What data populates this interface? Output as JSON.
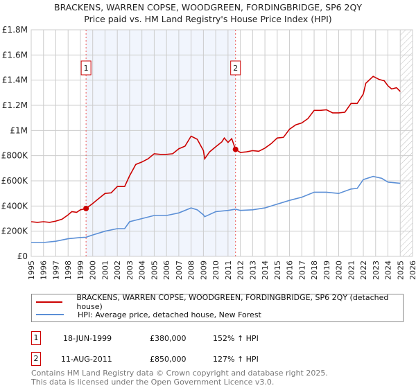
{
  "chart_data": {
    "type": "line",
    "title": "BRACKENS, WARREN COPSE, WOODGREEN, FORDINGBRIDGE, SP6 2QY",
    "subtitle": "Price paid vs. HM Land Registry's House Price Index (HPI)",
    "xlim": [
      1995,
      2026
    ],
    "ylim": [
      0,
      1800000
    ],
    "x_ticks": [
      "1995",
      "1996",
      "1997",
      "1998",
      "1999",
      "2000",
      "2001",
      "2002",
      "2003",
      "2004",
      "2005",
      "2006",
      "2007",
      "2008",
      "2009",
      "2010",
      "2011",
      "2012",
      "2013",
      "2014",
      "2015",
      "2016",
      "2017",
      "2018",
      "2019",
      "2020",
      "2021",
      "2022",
      "2023",
      "2024",
      "2025",
      "2026"
    ],
    "y_ticks": [
      {
        "v": 0,
        "label": "£0"
      },
      {
        "v": 200000,
        "label": "£200K"
      },
      {
        "v": 400000,
        "label": "£400K"
      },
      {
        "v": 600000,
        "label": "£600K"
      },
      {
        "v": 800000,
        "label": "£800K"
      },
      {
        "v": 1000000,
        "label": "£1M"
      },
      {
        "v": 1200000,
        "label": "£1.2M"
      },
      {
        "v": 1400000,
        "label": "£1.4M"
      },
      {
        "v": 1600000,
        "label": "£1.6M"
      },
      {
        "v": 1800000,
        "label": "£1.8M"
      }
    ],
    "grid": true,
    "shaded_range": [
      1999.46,
      2011.61
    ],
    "forecast_hatch_from": 2025.0,
    "series": [
      {
        "name": "BRACKENS, WARREN COPSE, WOODGREEN, FORDINGBRIDGE, SP6 2QY (detached house)",
        "color": "#cc0000",
        "x": [
          1995,
          1995.5,
          1996,
          1996.5,
          1997,
          1997.5,
          1998,
          1998.3,
          1998.7,
          1999,
          1999.46,
          2000,
          2000.5,
          2001,
          2001.5,
          2002,
          2002.6,
          2003,
          2003.5,
          2004,
          2004.5,
          2005,
          2005.5,
          2006,
          2006.5,
          2007,
          2007.5,
          2008,
          2008.5,
          2009,
          2009.1,
          2009.5,
          2010,
          2010.5,
          2010.7,
          2011,
          2011.3,
          2011.61,
          2012,
          2012.5,
          2013,
          2013.5,
          2014,
          2014.5,
          2015,
          2015.5,
          2016,
          2016.5,
          2017,
          2017.5,
          2018,
          2018.5,
          2019,
          2019.5,
          2020,
          2020.5,
          2021,
          2021.5,
          2022,
          2022.2,
          2022.8,
          2023.3,
          2023.7,
          2024,
          2024.3,
          2024.7,
          2025
        ],
        "y": [
          275000,
          270000,
          275000,
          270000,
          280000,
          295000,
          330000,
          355000,
          350000,
          370000,
          380000,
          420000,
          460000,
          500000,
          505000,
          555000,
          555000,
          640000,
          730000,
          750000,
          775000,
          815000,
          810000,
          810000,
          815000,
          855000,
          875000,
          955000,
          930000,
          840000,
          775000,
          830000,
          870000,
          910000,
          940000,
          905000,
          935000,
          850000,
          825000,
          830000,
          840000,
          835000,
          860000,
          895000,
          940000,
          945000,
          1010000,
          1045000,
          1060000,
          1095000,
          1160000,
          1160000,
          1165000,
          1140000,
          1140000,
          1145000,
          1215000,
          1215000,
          1290000,
          1375000,
          1430000,
          1405000,
          1395000,
          1355000,
          1330000,
          1340000,
          1310000
        ]
      },
      {
        "name": "HPI: Average price, detached house, New Forest",
        "color": "#5b8fd6",
        "x": [
          1995,
          1996,
          1997,
          1998,
          1999,
          1999.46,
          2000,
          2001,
          2002,
          2002.6,
          2003,
          2004,
          2005,
          2006,
          2007,
          2008,
          2008.5,
          2009,
          2009.1,
          2010,
          2011,
          2011.61,
          2012,
          2013,
          2014,
          2015,
          2016,
          2017,
          2018,
          2019,
          2020,
          2021,
          2021.5,
          2022,
          2022.8,
          2023.5,
          2024,
          2025
        ],
        "y": [
          110000,
          110000,
          120000,
          140000,
          150000,
          152000,
          170000,
          200000,
          220000,
          220000,
          275000,
          300000,
          325000,
          325000,
          345000,
          385000,
          370000,
          330000,
          315000,
          355000,
          365000,
          375000,
          365000,
          370000,
          385000,
          415000,
          445000,
          470000,
          510000,
          510000,
          500000,
          535000,
          540000,
          610000,
          635000,
          620000,
          590000,
          580000
        ]
      }
    ],
    "annotations": [
      {
        "label": "1",
        "x": 1999.46,
        "y": 380000
      },
      {
        "label": "2",
        "x": 2011.61,
        "y": 850000
      }
    ],
    "legend": "below"
  },
  "sales": [
    {
      "num": "1",
      "date": "18-JUN-1999",
      "price": "£380,000",
      "hpi": "152% ↑ HPI"
    },
    {
      "num": "2",
      "date": "11-AUG-2011",
      "price": "£850,000",
      "hpi": "127% ↑ HPI"
    }
  ],
  "footer": {
    "line1": "Contains HM Land Registry data © Crown copyright and database right 2025.",
    "line2": "This data is licensed under the Open Government Licence v3.0."
  }
}
